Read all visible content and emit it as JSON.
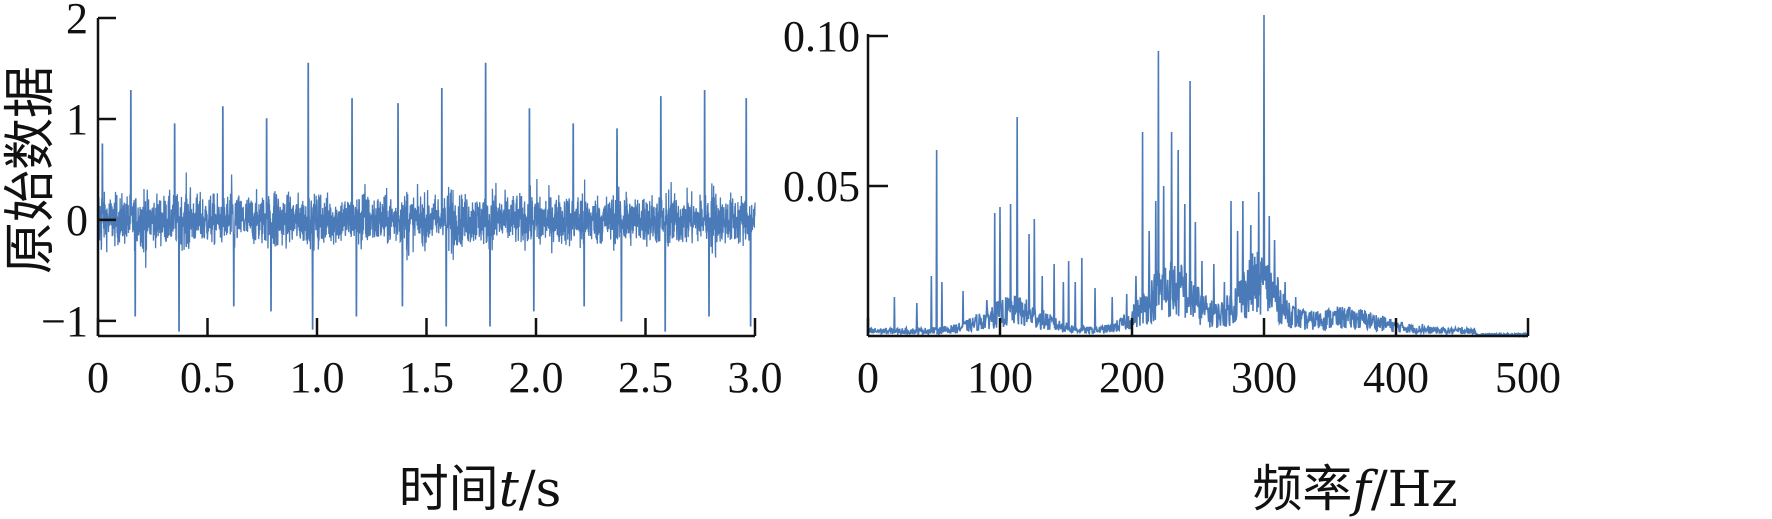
{
  "chart_data": [
    {
      "type": "line",
      "ylabel": "原始数据",
      "xlabel_prefix": "时间",
      "xlabel_var": "t",
      "xlabel_suffix": "/s",
      "xlim": [
        0,
        3.0
      ],
      "ylim": [
        -1.15,
        2.0
      ],
      "xticks": [
        "0",
        "0.5",
        "1.0",
        "1.5",
        "2.0",
        "2.5",
        "3.0"
      ],
      "xtick_values": [
        0,
        0.5,
        1.0,
        1.5,
        2.0,
        2.5,
        3.0
      ],
      "yticks": [
        "−1",
        "0",
        "1",
        "2"
      ],
      "ytick_values": [
        -1,
        0,
        1,
        2
      ],
      "color": "#4a7ab8",
      "series": [
        {
          "note_shape": "dense vibration signal around 0, amplitude mostly within ±0.6",
          "spikes": [
            {
              "t": 0.02,
              "v": 0.75
            },
            {
              "t": 0.15,
              "v": 1.28
            },
            {
              "t": 0.17,
              "v": -0.95
            },
            {
              "t": 0.35,
              "v": 0.95
            },
            {
              "t": 0.37,
              "v": -1.1
            },
            {
              "t": 0.57,
              "v": 1.12
            },
            {
              "t": 0.62,
              "v": -0.85
            },
            {
              "t": 0.77,
              "v": 1.0
            },
            {
              "t": 0.79,
              "v": -0.9
            },
            {
              "t": 0.96,
              "v": 1.55
            },
            {
              "t": 0.98,
              "v": -1.08
            },
            {
              "t": 1.16,
              "v": 1.2
            },
            {
              "t": 1.18,
              "v": -0.95
            },
            {
              "t": 1.37,
              "v": 1.15
            },
            {
              "t": 1.39,
              "v": -0.85
            },
            {
              "t": 1.57,
              "v": 1.3
            },
            {
              "t": 1.59,
              "v": -1.05
            },
            {
              "t": 1.77,
              "v": 1.55
            },
            {
              "t": 1.79,
              "v": -1.05
            },
            {
              "t": 1.97,
              "v": 1.1
            },
            {
              "t": 1.99,
              "v": -0.9
            },
            {
              "t": 2.17,
              "v": 0.95
            },
            {
              "t": 2.22,
              "v": -0.85
            },
            {
              "t": 2.37,
              "v": 0.9
            },
            {
              "t": 2.39,
              "v": -1.0
            },
            {
              "t": 2.57,
              "v": 1.22
            },
            {
              "t": 2.59,
              "v": -1.1
            },
            {
              "t": 2.77,
              "v": 1.28
            },
            {
              "t": 2.79,
              "v": -0.95
            },
            {
              "t": 2.96,
              "v": 1.2
            },
            {
              "t": 2.98,
              "v": -1.05
            }
          ]
        }
      ]
    },
    {
      "type": "line",
      "xlabel_prefix": "频率",
      "xlabel_var": "f",
      "xlabel_suffix": "/Hz",
      "xlim": [
        0,
        500
      ],
      "ylim": [
        0,
        0.107
      ],
      "xticks": [
        "0",
        "100",
        "200",
        "300",
        "400",
        "500"
      ],
      "xtick_values": [
        0,
        100,
        200,
        300,
        400,
        500
      ],
      "yticks": [
        "0.05",
        "0.10"
      ],
      "ytick_values": [
        0.05,
        0.1
      ],
      "color": "#4a7ab8",
      "series": [
        {
          "peaks": [
            {
              "f": 20,
              "a": 0.013
            },
            {
              "f": 37,
              "a": 0.011
            },
            {
              "f": 48,
              "a": 0.02
            },
            {
              "f": 52,
              "a": 0.062
            },
            {
              "f": 56,
              "a": 0.018
            },
            {
              "f": 72,
              "a": 0.015
            },
            {
              "f": 90,
              "a": 0.012
            },
            {
              "f": 96,
              "a": 0.041
            },
            {
              "f": 100,
              "a": 0.043
            },
            {
              "f": 108,
              "a": 0.044
            },
            {
              "f": 113,
              "a": 0.073
            },
            {
              "f": 122,
              "a": 0.034
            },
            {
              "f": 126,
              "a": 0.039
            },
            {
              "f": 132,
              "a": 0.02
            },
            {
              "f": 141,
              "a": 0.024
            },
            {
              "f": 148,
              "a": 0.018
            },
            {
              "f": 152,
              "a": 0.025
            },
            {
              "f": 157,
              "a": 0.018
            },
            {
              "f": 162,
              "a": 0.026
            },
            {
              "f": 172,
              "a": 0.016
            },
            {
              "f": 185,
              "a": 0.013
            },
            {
              "f": 196,
              "a": 0.014
            },
            {
              "f": 203,
              "a": 0.02
            },
            {
              "f": 208,
              "a": 0.068
            },
            {
              "f": 213,
              "a": 0.035
            },
            {
              "f": 218,
              "a": 0.045
            },
            {
              "f": 220,
              "a": 0.095
            },
            {
              "f": 224,
              "a": 0.05
            },
            {
              "f": 230,
              "a": 0.068
            },
            {
              "f": 235,
              "a": 0.062
            },
            {
              "f": 240,
              "a": 0.044
            },
            {
              "f": 244,
              "a": 0.085
            },
            {
              "f": 248,
              "a": 0.038
            },
            {
              "f": 253,
              "a": 0.025
            },
            {
              "f": 262,
              "a": 0.024
            },
            {
              "f": 270,
              "a": 0.018
            },
            {
              "f": 275,
              "a": 0.045
            },
            {
              "f": 280,
              "a": 0.035
            },
            {
              "f": 284,
              "a": 0.045
            },
            {
              "f": 290,
              "a": 0.037
            },
            {
              "f": 296,
              "a": 0.048
            },
            {
              "f": 300,
              "a": 0.107
            },
            {
              "f": 304,
              "a": 0.04
            },
            {
              "f": 308,
              "a": 0.032
            },
            {
              "f": 316,
              "a": 0.018
            },
            {
              "f": 324,
              "a": 0.013
            },
            {
              "f": 340,
              "a": 0.008
            },
            {
              "f": 360,
              "a": 0.006
            },
            {
              "f": 380,
              "a": 0.005
            },
            {
              "f": 400,
              "a": 0.004
            },
            {
              "f": 420,
              "a": 0.004
            },
            {
              "f": 450,
              "a": 0.003
            }
          ]
        }
      ]
    }
  ]
}
